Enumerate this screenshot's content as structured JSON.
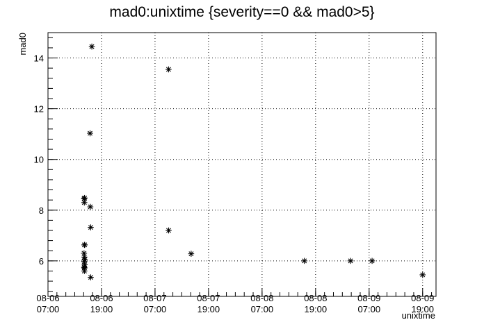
{
  "chart_data": {
    "type": "scatter",
    "title": "mad0:unixtime {severity==0 && mad0>5}",
    "xlabel": "unixtime",
    "ylabel": "mad0",
    "marker": "asterisk",
    "grid": true,
    "xlim": [
      "08-06 07:00",
      "08-09 22:00"
    ],
    "ylim": [
      4.6,
      15.0
    ],
    "x_ticks": [
      {
        "date": "08-06",
        "time": "07:00"
      },
      {
        "date": "08-06",
        "time": "19:00"
      },
      {
        "date": "08-07",
        "time": "07:00"
      },
      {
        "date": "08-07",
        "time": "19:00"
      },
      {
        "date": "08-08",
        "time": "07:00"
      },
      {
        "date": "08-08",
        "time": "19:00"
      },
      {
        "date": "08-09",
        "time": "07:00"
      },
      {
        "date": "08-09",
        "time": "19:00"
      }
    ],
    "y_ticks": [
      "6",
      "8",
      "10",
      "12",
      "14"
    ],
    "y_tick_values": [
      6,
      8,
      10,
      12,
      14
    ],
    "points": [
      {
        "x": "08-06 15:06",
        "y": 8.45
      },
      {
        "x": "08-06 15:09",
        "y": 8.3
      },
      {
        "x": "08-06 15:12",
        "y": 8.48
      },
      {
        "x": "08-06 15:10",
        "y": 6.63
      },
      {
        "x": "08-06 15:14",
        "y": 6.63
      },
      {
        "x": "08-06 15:05",
        "y": 6.3
      },
      {
        "x": "08-06 15:10",
        "y": 6.15
      },
      {
        "x": "08-06 15:14",
        "y": 6.05
      },
      {
        "x": "08-06 15:08",
        "y": 5.97
      },
      {
        "x": "08-06 15:14",
        "y": 5.85
      },
      {
        "x": "08-06 15:07",
        "y": 5.75
      },
      {
        "x": "08-06 15:11",
        "y": 5.72
      },
      {
        "x": "08-06 15:10",
        "y": 5.6
      },
      {
        "x": "08-06 16:26",
        "y": 11.03
      },
      {
        "x": "08-06 16:30",
        "y": 8.13
      },
      {
        "x": "08-06 16:35",
        "y": 7.32
      },
      {
        "x": "08-06 16:35",
        "y": 5.35
      },
      {
        "x": "08-06 16:50",
        "y": 14.45
      },
      {
        "x": "08-07 10:02",
        "y": 13.55
      },
      {
        "x": "08-07 10:03",
        "y": 7.2
      },
      {
        "x": "08-07 15:06",
        "y": 6.28
      },
      {
        "x": "08-08 16:29",
        "y": 6.0
      },
      {
        "x": "08-09 02:50",
        "y": 6.0
      },
      {
        "x": "08-09 07:40",
        "y": 6.0
      },
      {
        "x": "08-09 19:00",
        "y": 5.45
      }
    ]
  }
}
